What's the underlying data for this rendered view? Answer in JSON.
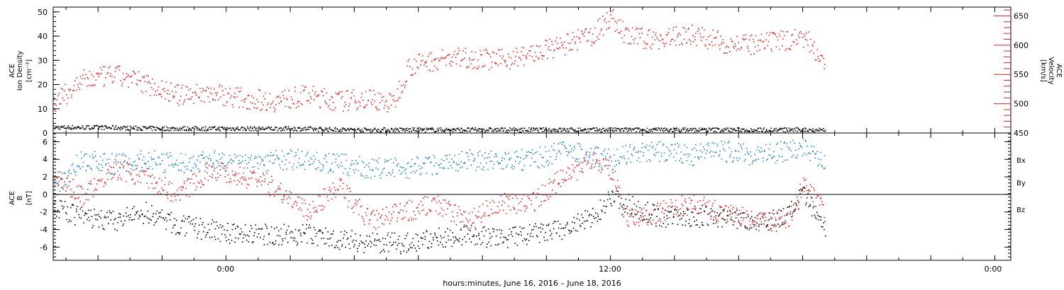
{
  "colors": {
    "black": "#000000",
    "red": "#e8201c",
    "blue": "#1b80d8"
  },
  "x_axis": {
    "ticks": [
      "0:00",
      "12:00",
      "0:00"
    ],
    "label": "hours:minutes, June 16, 2016 – June 18, 2016"
  },
  "top_panel": {
    "left_label_lines": [
      "ACE",
      "Ion Density",
      "[cm⁻³]"
    ],
    "right_label_lines": [
      "ACE",
      "Velocity",
      "[km/s]"
    ]
  },
  "bottom_panel": {
    "left_label_lines": [
      "ACE",
      "B",
      "[nT]"
    ],
    "legend": [
      "Bx",
      "By",
      "Bz"
    ]
  },
  "chart_data": [
    {
      "type": "scatter",
      "panel": "top",
      "x_unit": "hours since 2016-06-16 00:00",
      "xlim": [
        -5.4,
        24.5
      ],
      "ylim": [
        0,
        52
      ],
      "y_ticks": [
        0,
        10,
        20,
        30,
        40,
        50
      ],
      "ylabel": "ACE Ion Density [cm⁻³]",
      "y2lim": [
        450,
        665
      ],
      "y2_ticks": [
        450,
        500,
        550,
        600,
        650
      ],
      "y2label": "ACE Velocity [km/s]",
      "series": [
        {
          "axis": "left",
          "color": "black",
          "x": [
            -5.4,
            -4,
            -2,
            0,
            2,
            4,
            6,
            8,
            10,
            12,
            14,
            16,
            18,
            18.7
          ],
          "y": [
            2.5,
            2.5,
            2.0,
            2.0,
            2.0,
            1.5,
            1.5,
            1.5,
            1.5,
            1.5,
            1.5,
            1.5,
            1.5,
            1.5
          ]
        },
        {
          "axis": "right",
          "color": "red",
          "x": [
            -5.4,
            -4.5,
            -3.5,
            -2.5,
            -1.5,
            -0.5,
            0.5,
            1.5,
            2.5,
            3.5,
            4.5,
            5.2,
            5.7,
            6.5,
            7.5,
            8.5,
            9.5,
            10.5,
            11.5,
            12.0,
            12.5,
            13.5,
            14.5,
            15.5,
            16.5,
            17.5,
            18.0,
            18.7
          ],
          "y": [
            500,
            540,
            550,
            535,
            515,
            520,
            510,
            505,
            515,
            505,
            510,
            500,
            565,
            575,
            580,
            575,
            585,
            600,
            620,
            650,
            615,
            610,
            620,
            605,
            600,
            610,
            615,
            575
          ]
        }
      ]
    },
    {
      "type": "scatter",
      "panel": "bottom",
      "x_unit": "hours since 2016-06-16 00:00",
      "xlim": [
        -5.4,
        24.5
      ],
      "ylim": [
        -7.5,
        7
      ],
      "y_ticks": [
        -6,
        -4,
        -2,
        0,
        2,
        4,
        6
      ],
      "ylabel": "ACE B [nT]",
      "series": [
        {
          "name": "Bx",
          "color": "black",
          "x": [
            -5.4,
            -4.5,
            -3.5,
            -2.5,
            -1.5,
            -0.5,
            0.5,
            1.5,
            2.5,
            3.5,
            4.5,
            5.5,
            6.5,
            7.5,
            8.5,
            9.5,
            10.5,
            11.5,
            12.0,
            12.5,
            13.5,
            14.5,
            15.5,
            16.5,
            17.5,
            18.0,
            18.7
          ],
          "y": [
            -1.5,
            -2.5,
            -3,
            -2,
            -3.5,
            -4,
            -4.5,
            -4.5,
            -4.5,
            -5,
            -5.5,
            -5.5,
            -5,
            -4.5,
            -5,
            -4.5,
            -4,
            -2.5,
            0,
            -1,
            -2.5,
            -2.5,
            -2.5,
            -3,
            -2.5,
            0,
            -4
          ]
        },
        {
          "name": "By",
          "color": "blue",
          "x": [
            -5.4,
            -4.5,
            -3.5,
            -2.5,
            -1.5,
            -0.5,
            0.5,
            1.5,
            2.5,
            3.5,
            4.5,
            5.5,
            6.5,
            7.5,
            8.5,
            9.5,
            10.5,
            11.5,
            12.0,
            12.5,
            13.5,
            14.5,
            15.5,
            16.5,
            17.5,
            18.0,
            18.7
          ],
          "y": [
            1,
            4,
            3.5,
            4,
            3.5,
            4,
            3.5,
            4,
            4,
            3.5,
            3,
            3,
            3.5,
            4,
            4,
            4,
            5,
            4.5,
            4,
            4.5,
            5,
            4.5,
            5,
            4.5,
            5,
            5.5,
            4
          ]
        },
        {
          "name": "Bz",
          "color": "red",
          "x": [
            -5.4,
            -4.5,
            -3.5,
            -2.5,
            -1.5,
            -0.5,
            0.5,
            1.5,
            2.5,
            3.5,
            4.5,
            5.5,
            6.5,
            7.5,
            8.5,
            9.5,
            10.5,
            11.5,
            12.0,
            12.5,
            13.5,
            14.5,
            15.5,
            16.5,
            17.5,
            18.0,
            18.7
          ],
          "y": [
            2,
            0,
            3,
            2,
            0,
            3,
            2,
            1,
            -2,
            1,
            -3,
            -2,
            -1,
            -3,
            -1,
            -1,
            2,
            4,
            3,
            -3,
            -2,
            -1,
            -2,
            -3,
            -3,
            1,
            -2
          ]
        }
      ]
    }
  ]
}
